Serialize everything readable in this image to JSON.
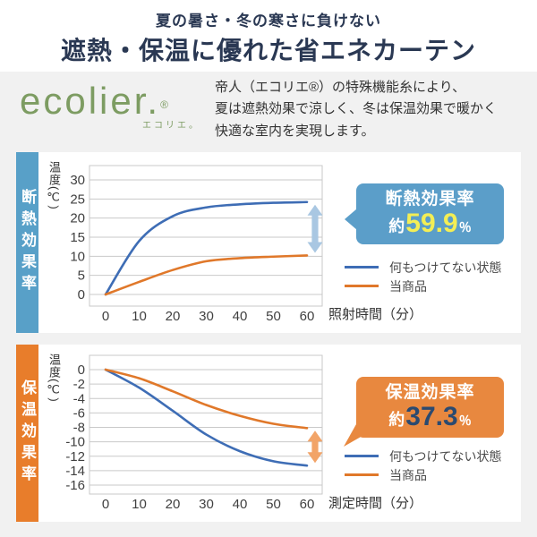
{
  "header": {
    "subtitle": "夏の暑さ・冬の寒さに負けない",
    "title": "遮熱・保温に優れた省エネカーテン"
  },
  "intro": {
    "brand_name": "ecolier.",
    "brand_reg": "®",
    "brand_kana": "エコリエ。",
    "brand_color": "#7d9c62",
    "description": "帝人（エコリエ®）の特殊機能糸により、\n夏は遮熱効果で涼しく、冬は保温効果で暖かく\n快適な室内を実現します。"
  },
  "sections": [
    {
      "side_label": "断熱効果率",
      "side_color": "#58a0c8",
      "callout": {
        "title": "断熱効果率",
        "prefix": "約",
        "value": "59.9",
        "unit": "％",
        "bg": "#5b9ec9",
        "value_color": "#f3ee55"
      }
    },
    {
      "side_label": "保温効果率",
      "side_color": "#e87d2b",
      "callout": {
        "title": "保温効果率",
        "prefix": "約",
        "value": "37.3",
        "unit": "％",
        "bg": "#e8883f",
        "value_color": "#2b4a70"
      }
    }
  ],
  "chart_data": [
    {
      "type": "line",
      "title": "断熱効果率 約59.9％",
      "x": [
        0,
        10,
        20,
        30,
        40,
        50,
        60
      ],
      "series": [
        {
          "name": "何もつけてない状態",
          "color": "#3e6db5",
          "values": [
            0,
            14,
            20.5,
            22.8,
            23.6,
            24,
            24.2
          ]
        },
        {
          "name": "当商品",
          "color": "#e0782a",
          "values": [
            0,
            3.3,
            6.4,
            8.7,
            9.5,
            9.9,
            10.2
          ]
        }
      ],
      "xlabel": "照射時間（分）",
      "ylabel": "温度(℃)",
      "ylim": [
        0,
        30
      ],
      "ytick_step": 5,
      "grid": true,
      "legend_position": "right",
      "gap_arrow_color": "#a9c7e2"
    },
    {
      "type": "line",
      "title": "保温効果率 約37.3％",
      "x": [
        0,
        10,
        20,
        30,
        40,
        50,
        60
      ],
      "series": [
        {
          "name": "何もつけてない状態",
          "color": "#3e6db5",
          "values": [
            0,
            -2.5,
            -5.7,
            -9,
            -11.3,
            -12.7,
            -13.3
          ]
        },
        {
          "name": "当商品",
          "color": "#e0782a",
          "values": [
            0,
            -1.2,
            -3,
            -4.9,
            -6.4,
            -7.5,
            -8.1
          ]
        }
      ],
      "xlabel": "測定時間（分）",
      "ylabel": "温度(℃)",
      "ylim": [
        -16,
        0
      ],
      "ytick_step": 2,
      "grid": true,
      "legend_position": "right",
      "gap_arrow_color": "#f2a468"
    }
  ]
}
